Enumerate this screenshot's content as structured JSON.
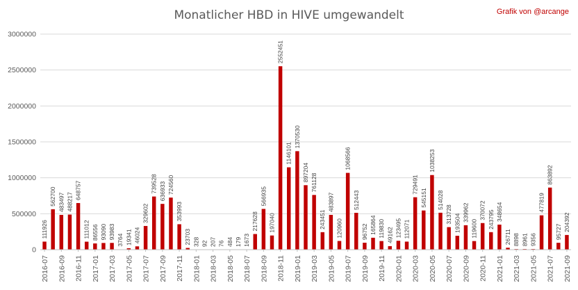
{
  "chart_data": {
    "type": "bar",
    "title": "Monatlicher HBD in HIVE umgewandelt",
    "credit": "Grafik von @arcange",
    "xlabel": "",
    "ylabel": "",
    "ylim": [
      0,
      3000000
    ],
    "yticks": [
      0,
      500000,
      1000000,
      1500000,
      2000000,
      2500000,
      3000000
    ],
    "grid": true,
    "legend": "none",
    "bar_color": "#c00000",
    "tick_every": 2,
    "categories": [
      "2016-07",
      "2016-08",
      "2016-09",
      "2016-10",
      "2016-11",
      "2016-12",
      "2017-01",
      "2017-02",
      "2017-03",
      "2017-04",
      "2017-05",
      "2017-06",
      "2017-07",
      "2017-08",
      "2017-09",
      "2017-10",
      "2017-11",
      "2017-12",
      "2018-01",
      "2018-02",
      "2018-03",
      "2018-04",
      "2018-05",
      "2018-06",
      "2018-07",
      "2018-08",
      "2018-09",
      "2018-10",
      "2018-11",
      "2018-12",
      "2019-01",
      "2019-02",
      "2019-03",
      "2019-04",
      "2019-05",
      "2019-06",
      "2019-07",
      "2019-08",
      "2019-09",
      "2019-10",
      "2019-11",
      "2019-12",
      "2020-01",
      "2020-02",
      "2020-03",
      "2020-04",
      "2020-05",
      "2020-06",
      "2020-07",
      "2020-08",
      "2020-09",
      "2020-10",
      "2020-11",
      "2020-12",
      "2021-01",
      "2021-02",
      "2021-03",
      "2021-04",
      "2021-05",
      "2021-06",
      "2021-07",
      "2021-08",
      "2021-09"
    ],
    "values": [
      111926,
      562700,
      483497,
      488217,
      648757,
      111012,
      86556,
      93090,
      93983,
      3764,
      19341,
      46024,
      329602,
      739528,
      636933,
      724560,
      353993,
      23703,
      328,
      92,
      207,
      76,
      484,
      179,
      1673,
      217628,
      566935,
      197040,
      2552451,
      1146101,
      1370530,
      897204,
      761128,
      243451,
      483897,
      120960,
      1068566,
      512443,
      96752,
      165864,
      119830,
      49162,
      123495,
      112071,
      729491,
      545151,
      1038253,
      514028,
      313728,
      193504,
      339962,
      119600,
      370072,
      243795,
      348654,
      26711,
      8898,
      8961,
      9356,
      477819,
      863892,
      95727,
      204392
    ]
  }
}
